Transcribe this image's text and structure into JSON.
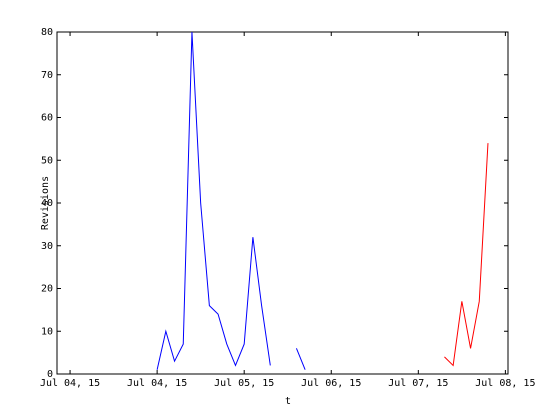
{
  "chart_data": {
    "type": "line",
    "x_label": "t",
    "y_label": "Revisions",
    "xlim": [
      -0.15,
      5.03
    ],
    "xticks": [
      {
        "value": 0,
        "label": "Jul 04, 15"
      },
      {
        "value": 1,
        "label": "Jul 04, 15"
      },
      {
        "value": 2,
        "label": "Jul 05, 15"
      },
      {
        "value": 3,
        "label": "Jul 06, 15"
      },
      {
        "value": 4,
        "label": "Jul 07, 15"
      },
      {
        "value": 5,
        "label": "Jul 08, 15"
      }
    ],
    "ylim": [
      0,
      80
    ],
    "yticks": [
      0,
      10,
      20,
      30,
      40,
      50,
      60,
      70,
      80
    ],
    "series": [
      {
        "color": "#0000ff",
        "x": [
          1.0,
          1.1,
          1.2,
          1.3,
          1.4,
          1.5,
          1.6,
          1.7,
          1.8,
          1.9,
          2.0,
          2.1,
          2.2,
          2.3,
          2.4,
          2.5,
          2.6,
          2.7
        ],
        "values": [
          1,
          10,
          3,
          7,
          80,
          40,
          16,
          14,
          7,
          2,
          7,
          32,
          16,
          2,
          null,
          null,
          6,
          1
        ]
      },
      {
        "color": "#ff0000",
        "x": [
          4.3,
          4.4,
          4.5,
          4.6,
          4.7,
          4.8
        ],
        "values": [
          4,
          2,
          17,
          6,
          17,
          54
        ]
      }
    ]
  }
}
